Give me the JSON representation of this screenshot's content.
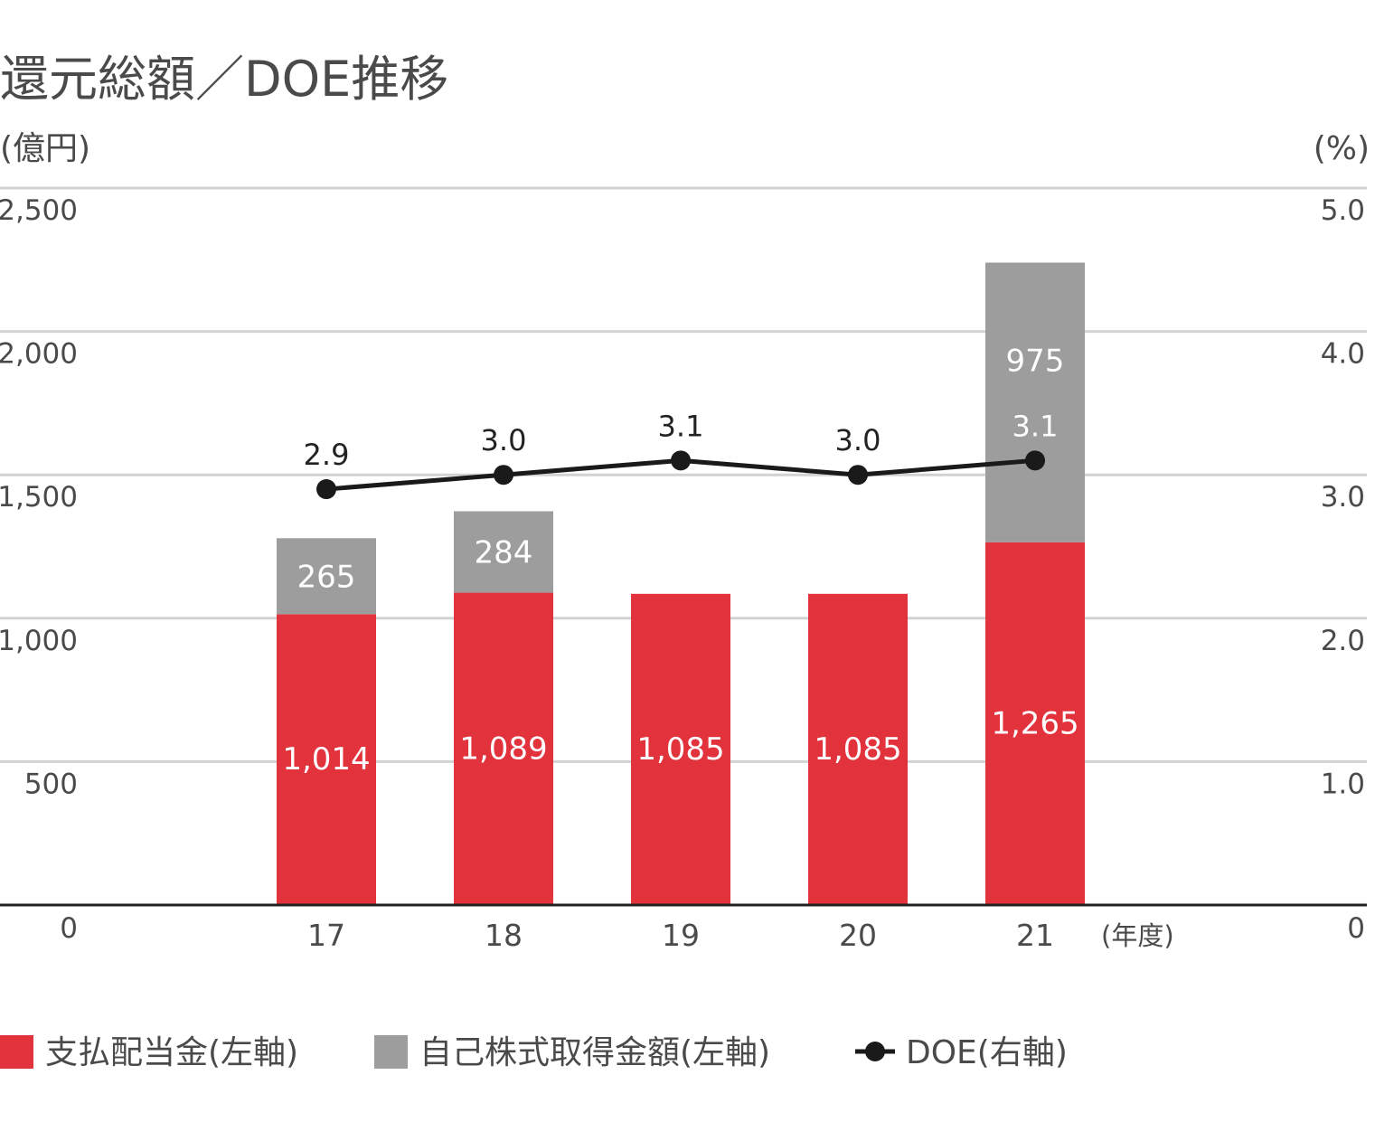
{
  "chart_data": {
    "type": "bar",
    "title": "還元総額／DOE推移",
    "y_left_unit": "(億円)",
    "y_right_unit": "(%)",
    "x_unit": "(年度)",
    "categories": [
      "17",
      "18",
      "19",
      "20",
      "21"
    ],
    "ylim": [
      0,
      2500
    ],
    "y2lim": [
      0,
      5.0
    ],
    "y_ticks": [
      "0",
      "500",
      "1,000",
      "1,500",
      "2,000",
      "2,500"
    ],
    "y2_ticks": [
      "0",
      "1.0",
      "2.0",
      "3.0",
      "4.0",
      "5.0"
    ],
    "grid": true,
    "legend_position": "bottom-left",
    "series": [
      {
        "name": "支払配当金(左軸)",
        "kind": "bar",
        "axis": "left",
        "color": "#e2323c",
        "values": [
          1014,
          1089,
          1085,
          1085,
          1265
        ],
        "labels": [
          "1,014",
          "1,089",
          "1,085",
          "1,085",
          "1,265"
        ]
      },
      {
        "name": "自己株式取得金額(左軸)",
        "kind": "bar",
        "axis": "left",
        "color": "#9d9d9d",
        "values": [
          265,
          284,
          0,
          0,
          975
        ],
        "labels": [
          "265",
          "284",
          "",
          "",
          "975"
        ]
      },
      {
        "name": "DOE(右軸)",
        "kind": "line",
        "axis": "right",
        "color": "#1a1a1a",
        "values": [
          2.9,
          3.0,
          3.1,
          3.0,
          3.1
        ],
        "labels": [
          "2.9",
          "3.0",
          "3.1",
          "3.0",
          "3.1"
        ]
      }
    ]
  }
}
